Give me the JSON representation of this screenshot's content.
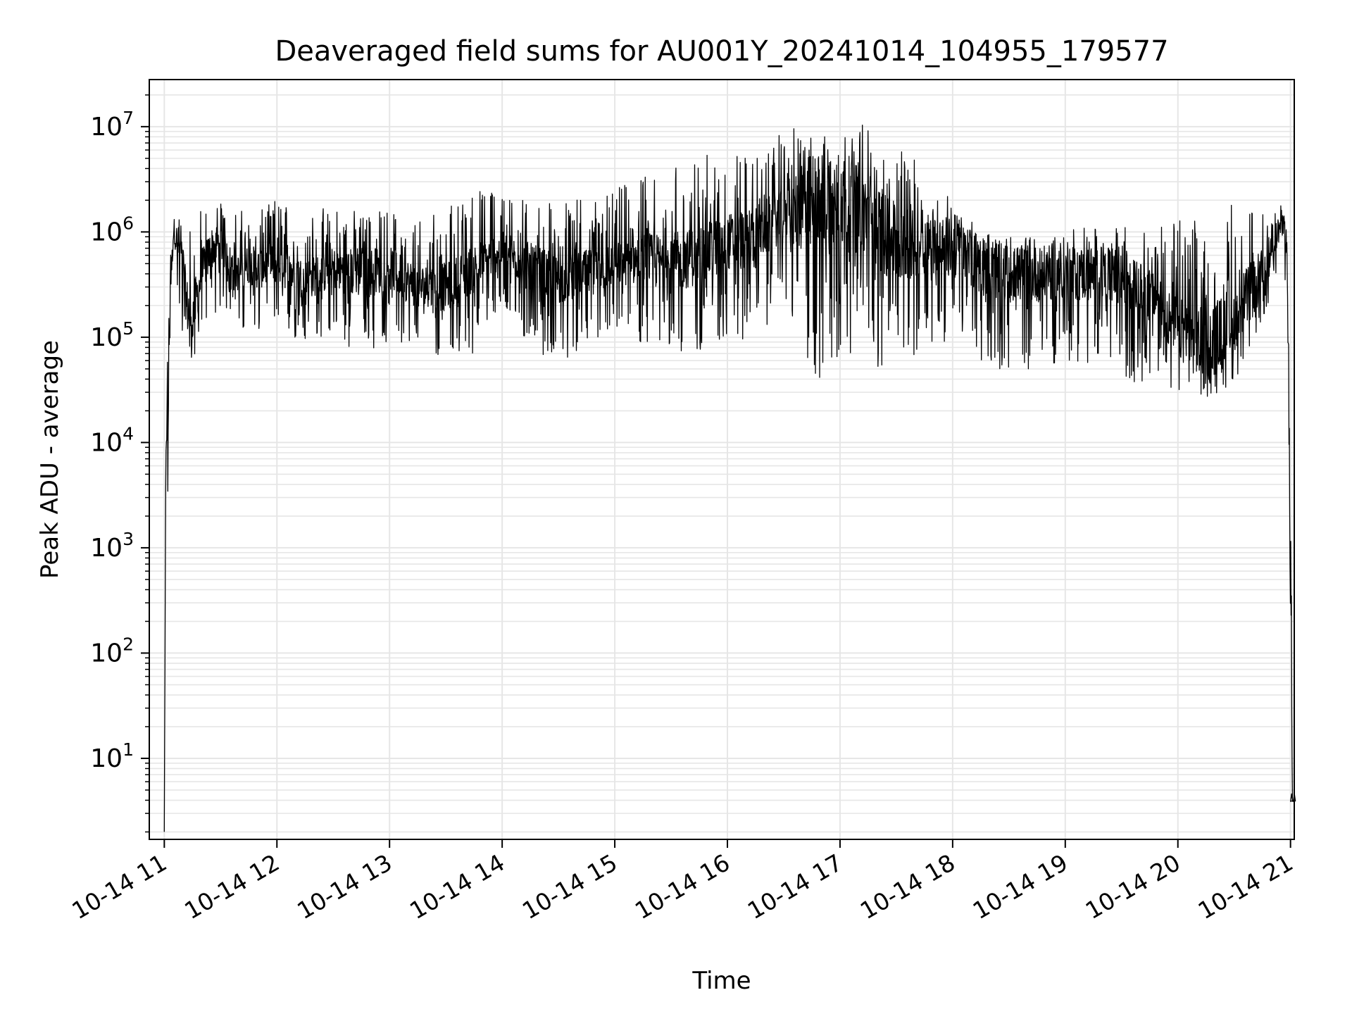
{
  "chart_data": {
    "type": "line",
    "title": "Deaveraged field sums for AU001Y_20241014_104955_179577",
    "xlabel": "Time",
    "ylabel": "Peak ADU - average",
    "yscale": "log",
    "grid": true,
    "x_unit": "hours (2024-10-14, local clock)",
    "xlim": [
      "10-14 10:52",
      "10-14 21:02"
    ],
    "ylim": [
      1.7,
      28000000
    ],
    "x_ticks": [
      {
        "value": "10-14 11:00",
        "label": "10-14 11"
      },
      {
        "value": "10-14 12:00",
        "label": "10-14 12"
      },
      {
        "value": "10-14 13:00",
        "label": "10-14 13"
      },
      {
        "value": "10-14 14:00",
        "label": "10-14 14"
      },
      {
        "value": "10-14 15:00",
        "label": "10-14 15"
      },
      {
        "value": "10-14 16:00",
        "label": "10-14 16"
      },
      {
        "value": "10-14 17:00",
        "label": "10-14 17"
      },
      {
        "value": "10-14 18:00",
        "label": "10-14 18"
      },
      {
        "value": "10-14 19:00",
        "label": "10-14 19"
      },
      {
        "value": "10-14 20:00",
        "label": "10-14 20"
      },
      {
        "value": "10-14 21:00",
        "label": "10-14 21"
      }
    ],
    "y_ticks": [
      {
        "value": 10,
        "base": "10",
        "exp": "1"
      },
      {
        "value": 100,
        "base": "10",
        "exp": "2"
      },
      {
        "value": 1000,
        "base": "10",
        "exp": "3"
      },
      {
        "value": 10000,
        "base": "10",
        "exp": "4"
      },
      {
        "value": 100000,
        "base": "10",
        "exp": "5"
      },
      {
        "value": 1000000,
        "base": "10",
        "exp": "6"
      },
      {
        "value": 10000000,
        "base": "10",
        "exp": "7"
      }
    ],
    "series_color": "#000000",
    "grid_color": "#e6e6e6",
    "series": [
      {
        "x": [
          "10-14 11:00",
          "10-14 11:01",
          "10-14 11:02",
          "10-14 11:03",
          "10-14 11:04",
          "10-14 11:05",
          "10-14 11:06",
          "10-14 11:08",
          "10-14 11:10",
          "10-14 11:12",
          "10-14 11:15",
          "10-14 11:20",
          "10-14 11:25",
          "10-14 11:30",
          "10-14 11:35",
          "10-14 11:40",
          "10-14 11:45",
          "10-14 11:50",
          "10-14 12:00",
          "10-14 12:15",
          "10-14 12:30",
          "10-14 12:45",
          "10-14 13:00",
          "10-14 13:15",
          "10-14 13:30",
          "10-14 13:45",
          "10-14 14:00",
          "10-14 14:15",
          "10-14 14:30",
          "10-14 14:45",
          "10-14 15:00",
          "10-14 15:15",
          "10-14 15:30",
          "10-14 15:45",
          "10-14 16:00",
          "10-14 16:15",
          "10-14 16:30",
          "10-14 16:45",
          "10-14 17:00",
          "10-14 17:15",
          "10-14 17:30",
          "10-14 17:45",
          "10-14 18:00",
          "10-14 18:15",
          "10-14 18:30",
          "10-14 18:45",
          "10-14 19:00",
          "10-14 19:15",
          "10-14 19:30",
          "10-14 19:45",
          "10-14 20:00",
          "10-14 20:15",
          "10-14 20:30",
          "10-14 20:45",
          "10-14 20:55",
          "10-14 20:58",
          "10-14 21:00",
          "10-14 21:01",
          "10-14 21:02"
        ],
        "median": [
          2,
          20000,
          12000,
          300000,
          500000,
          1100000,
          900000,
          700000,
          500000,
          200000,
          150000,
          400000,
          700000,
          800000,
          500000,
          400000,
          500000,
          450000,
          500000,
          350000,
          450000,
          400000,
          450000,
          300000,
          300000,
          450000,
          700000,
          450000,
          350000,
          400000,
          500000,
          550000,
          500000,
          600000,
          800000,
          900000,
          1500000,
          1800000,
          2000000,
          1500000,
          700000,
          800000,
          700000,
          500000,
          400000,
          400000,
          400000,
          400000,
          350000,
          250000,
          120000,
          80000,
          150000,
          400000,
          1200000,
          800000,
          1000,
          4,
          4
        ],
        "low": [
          2,
          600,
          2000,
          40000,
          200000,
          500000,
          300000,
          150000,
          100000,
          60000,
          60000,
          80000,
          150000,
          200000,
          150000,
          100000,
          120000,
          100000,
          120000,
          80000,
          100000,
          60000,
          90000,
          60000,
          60000,
          70000,
          200000,
          70000,
          60000,
          70000,
          120000,
          80000,
          60000,
          70000,
          100000,
          80000,
          250000,
          35000,
          50000,
          60000,
          35000,
          80000,
          80000,
          50000,
          50000,
          50000,
          60000,
          50000,
          40000,
          35000,
          30000,
          25000,
          35000,
          150000,
          400000,
          300000,
          200,
          4,
          4
        ],
        "high": [
          2,
          90000,
          60000,
          600000,
          1200000,
          1900000,
          1700000,
          1600000,
          1500000,
          1600000,
          1500000,
          1700000,
          2000000,
          2100000,
          2000000,
          1600000,
          1700000,
          1500000,
          2200000,
          1600000,
          1800000,
          1600000,
          1700000,
          1500000,
          1800000,
          2500000,
          2800000,
          2200000,
          1900000,
          2100000,
          2600000,
          3500000,
          4500000,
          5000000,
          6500000,
          5000000,
          10000000,
          9000000,
          8000000,
          12000000,
          7000000,
          4000000,
          2000000,
          1000000,
          900000,
          1000000,
          1100000,
          1200000,
          1300000,
          1300000,
          1300000,
          1300000,
          2000000,
          2600000,
          2200000,
          1500000,
          30000,
          4,
          4
        ]
      }
    ]
  }
}
